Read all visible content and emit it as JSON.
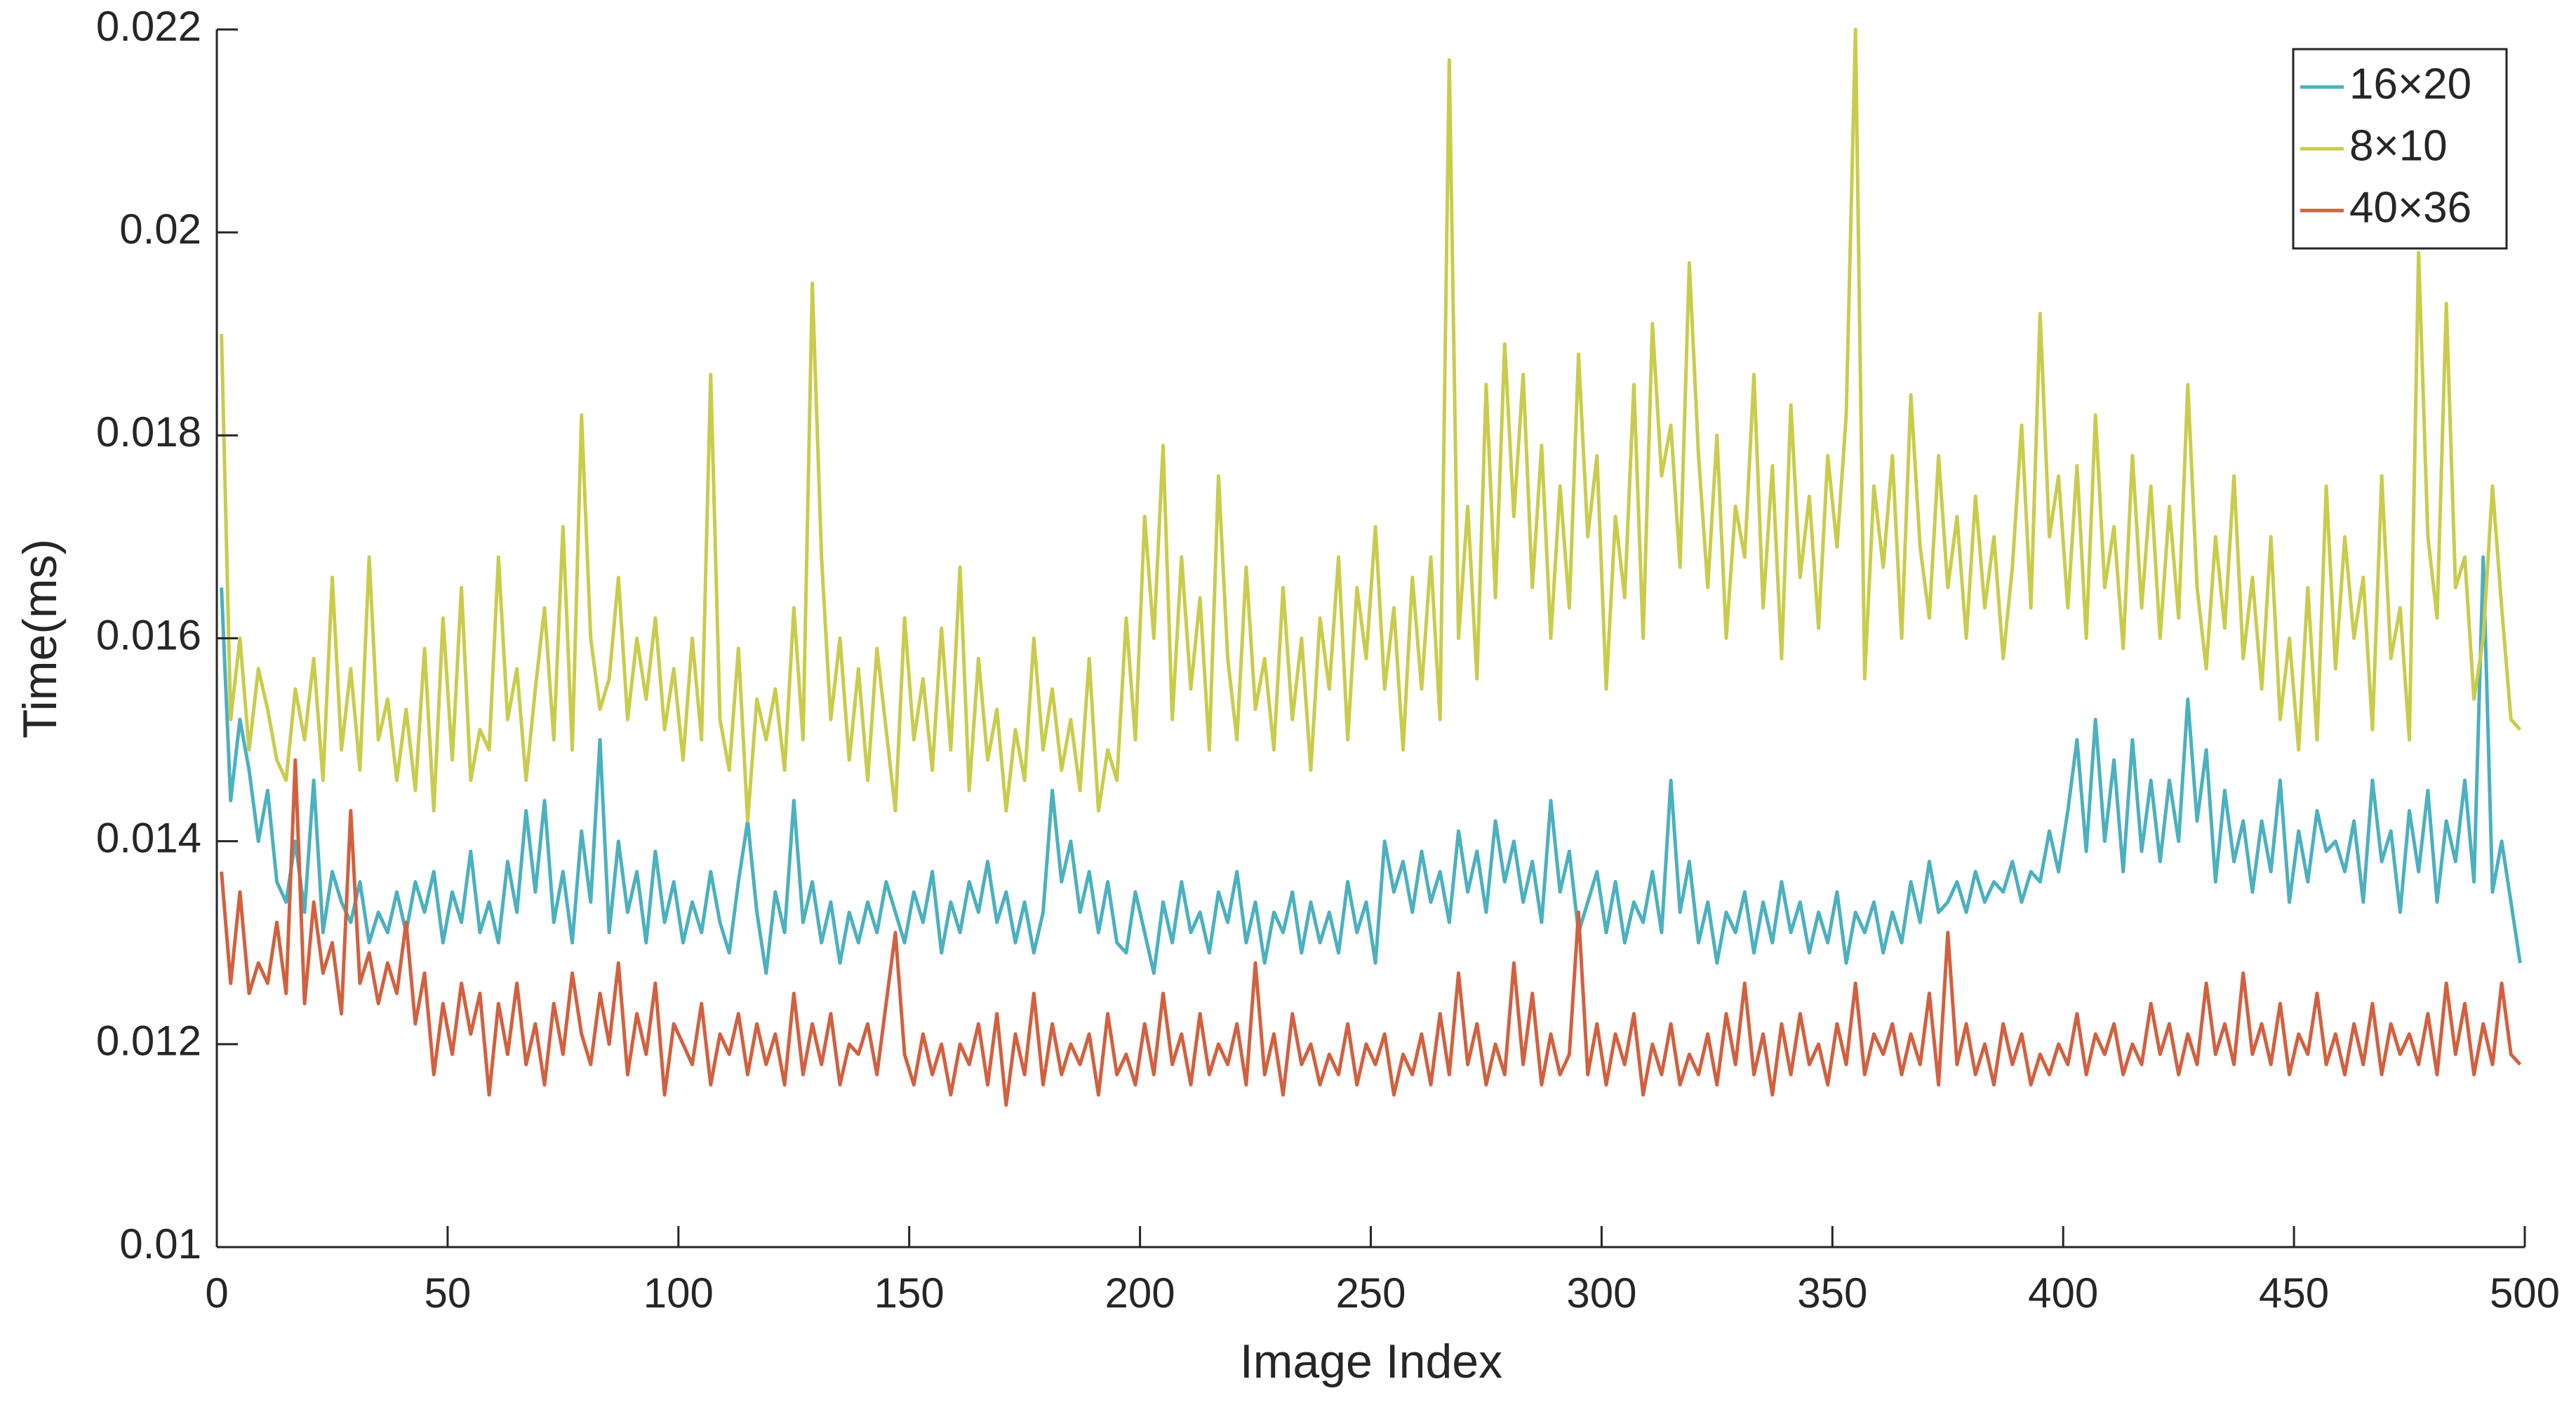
{
  "chart_data": {
    "type": "line",
    "x_label": "Image Index",
    "y_label": "Time(ms)",
    "xlim": [
      0,
      500
    ],
    "xticks": [
      0,
      50,
      100,
      150,
      200,
      250,
      300,
      350,
      400,
      450,
      500
    ],
    "ylim": [
      0.01,
      0.022
    ],
    "yticks": [
      0.01,
      0.012,
      0.014,
      0.016,
      0.018,
      0.02,
      0.022
    ],
    "legend": "northeast",
    "x": [
      1,
      3,
      5,
      7,
      9,
      11,
      13,
      15,
      17,
      19,
      21,
      23,
      25,
      27,
      29,
      31,
      33,
      35,
      37,
      39,
      41,
      43,
      45,
      47,
      49,
      51,
      53,
      55,
      57,
      59,
      61,
      63,
      65,
      67,
      69,
      71,
      73,
      75,
      77,
      79,
      81,
      83,
      85,
      87,
      89,
      91,
      93,
      95,
      97,
      99,
      101,
      103,
      105,
      107,
      109,
      111,
      113,
      115,
      117,
      119,
      121,
      123,
      125,
      127,
      129,
      131,
      133,
      135,
      137,
      139,
      141,
      143,
      145,
      147,
      149,
      151,
      153,
      155,
      157,
      159,
      161,
      163,
      165,
      167,
      169,
      171,
      173,
      175,
      177,
      179,
      181,
      183,
      185,
      187,
      189,
      191,
      193,
      195,
      197,
      199,
      201,
      203,
      205,
      207,
      209,
      211,
      213,
      215,
      217,
      219,
      221,
      223,
      225,
      227,
      229,
      231,
      233,
      235,
      237,
      239,
      241,
      243,
      245,
      247,
      249,
      251,
      253,
      255,
      257,
      259,
      261,
      263,
      265,
      267,
      269,
      271,
      273,
      275,
      277,
      279,
      281,
      283,
      285,
      287,
      289,
      291,
      293,
      295,
      297,
      299,
      301,
      303,
      305,
      307,
      309,
      311,
      313,
      315,
      317,
      319,
      321,
      323,
      325,
      327,
      329,
      331,
      333,
      335,
      337,
      339,
      341,
      343,
      345,
      347,
      349,
      351,
      353,
      355,
      357,
      359,
      361,
      363,
      365,
      367,
      369,
      371,
      373,
      375,
      377,
      379,
      381,
      383,
      385,
      387,
      389,
      391,
      393,
      395,
      397,
      399,
      401,
      403,
      405,
      407,
      409,
      411,
      413,
      415,
      417,
      419,
      421,
      423,
      425,
      427,
      429,
      431,
      433,
      435,
      437,
      439,
      441,
      443,
      445,
      447,
      449,
      451,
      453,
      455,
      457,
      459,
      461,
      463,
      465,
      467,
      469,
      471,
      473,
      475,
      477,
      479,
      481,
      483,
      485,
      487,
      489,
      491,
      493,
      495,
      497,
      499
    ],
    "series": [
      {
        "name": "16×20",
        "color": "#4bb0bf",
        "values": [
          0.0165,
          0.0144,
          0.0152,
          0.0147,
          0.014,
          0.0145,
          0.0136,
          0.0134,
          0.014,
          0.0133,
          0.0146,
          0.0131,
          0.0137,
          0.0134,
          0.0132,
          0.0136,
          0.013,
          0.0133,
          0.0131,
          0.0135,
          0.0131,
          0.0136,
          0.0133,
          0.0137,
          0.013,
          0.0135,
          0.0132,
          0.0139,
          0.0131,
          0.0134,
          0.013,
          0.0138,
          0.0133,
          0.0143,
          0.0135,
          0.0144,
          0.0132,
          0.0137,
          0.013,
          0.0141,
          0.0134,
          0.015,
          0.0131,
          0.014,
          0.0133,
          0.0137,
          0.013,
          0.0139,
          0.0132,
          0.0136,
          0.013,
          0.0134,
          0.0131,
          0.0137,
          0.0132,
          0.0129,
          0.0136,
          0.0142,
          0.0133,
          0.0127,
          0.0135,
          0.0131,
          0.0144,
          0.0132,
          0.0136,
          0.013,
          0.0134,
          0.0128,
          0.0133,
          0.013,
          0.0134,
          0.0131,
          0.0136,
          0.0133,
          0.013,
          0.0135,
          0.0132,
          0.0137,
          0.0129,
          0.0134,
          0.0131,
          0.0136,
          0.0133,
          0.0138,
          0.0132,
          0.0135,
          0.013,
          0.0134,
          0.0129,
          0.0133,
          0.0145,
          0.0136,
          0.014,
          0.0133,
          0.0137,
          0.0131,
          0.0136,
          0.013,
          0.0129,
          0.0135,
          0.0131,
          0.0127,
          0.0134,
          0.013,
          0.0136,
          0.0131,
          0.0133,
          0.0129,
          0.0135,
          0.0132,
          0.0137,
          0.013,
          0.0134,
          0.0128,
          0.0133,
          0.0131,
          0.0135,
          0.0129,
          0.0134,
          0.013,
          0.0133,
          0.0129,
          0.0136,
          0.0131,
          0.0134,
          0.0128,
          0.014,
          0.0135,
          0.0138,
          0.0133,
          0.0139,
          0.0134,
          0.0137,
          0.0132,
          0.0141,
          0.0135,
          0.0139,
          0.0133,
          0.0142,
          0.0136,
          0.014,
          0.0134,
          0.0138,
          0.0132,
          0.0144,
          0.0135,
          0.0139,
          0.0131,
          0.0134,
          0.0137,
          0.0131,
          0.0136,
          0.013,
          0.0134,
          0.0132,
          0.0137,
          0.0131,
          0.0146,
          0.0133,
          0.0138,
          0.013,
          0.0134,
          0.0128,
          0.0133,
          0.0131,
          0.0135,
          0.0129,
          0.0134,
          0.013,
          0.0136,
          0.0131,
          0.0134,
          0.0129,
          0.0133,
          0.013,
          0.0135,
          0.0128,
          0.0133,
          0.0131,
          0.0134,
          0.0129,
          0.0133,
          0.013,
          0.0136,
          0.0132,
          0.0138,
          0.0133,
          0.0134,
          0.0136,
          0.0133,
          0.0137,
          0.0134,
          0.0136,
          0.0135,
          0.0138,
          0.0134,
          0.0137,
          0.0136,
          0.0141,
          0.0137,
          0.0143,
          0.015,
          0.0139,
          0.0152,
          0.014,
          0.0148,
          0.0137,
          0.015,
          0.0139,
          0.0146,
          0.0138,
          0.0146,
          0.014,
          0.0154,
          0.0142,
          0.0149,
          0.0136,
          0.0145,
          0.0138,
          0.0142,
          0.0135,
          0.0142,
          0.0137,
          0.0146,
          0.0134,
          0.0141,
          0.0136,
          0.0143,
          0.0139,
          0.014,
          0.0137,
          0.0142,
          0.0134,
          0.0146,
          0.0138,
          0.0141,
          0.0133,
          0.0143,
          0.0137,
          0.0145,
          0.0134,
          0.0142,
          0.0138,
          0.0146,
          0.0136,
          0.0168,
          0.0135,
          0.014,
          0.0134,
          0.0128
        ]
      },
      {
        "name": "8×10",
        "color": "#c9cc4b",
        "values": [
          0.019,
          0.0152,
          0.016,
          0.0149,
          0.0157,
          0.0153,
          0.0148,
          0.0146,
          0.0155,
          0.015,
          0.0158,
          0.0146,
          0.0166,
          0.0149,
          0.0157,
          0.0147,
          0.0168,
          0.015,
          0.0154,
          0.0146,
          0.0153,
          0.0145,
          0.0159,
          0.0143,
          0.0162,
          0.0148,
          0.0165,
          0.0146,
          0.0151,
          0.0149,
          0.0168,
          0.0152,
          0.0157,
          0.0146,
          0.0155,
          0.0163,
          0.015,
          0.0171,
          0.0149,
          0.0182,
          0.016,
          0.0153,
          0.0156,
          0.0166,
          0.0152,
          0.016,
          0.0154,
          0.0162,
          0.0151,
          0.0157,
          0.0148,
          0.016,
          0.015,
          0.0186,
          0.0152,
          0.0147,
          0.0159,
          0.0142,
          0.0154,
          0.015,
          0.0155,
          0.0147,
          0.0163,
          0.015,
          0.0195,
          0.0168,
          0.0152,
          0.016,
          0.0148,
          0.0157,
          0.0146,
          0.0159,
          0.0151,
          0.0143,
          0.0162,
          0.015,
          0.0156,
          0.0147,
          0.0161,
          0.0149,
          0.0167,
          0.0145,
          0.0158,
          0.0148,
          0.0153,
          0.0143,
          0.0151,
          0.0146,
          0.016,
          0.0149,
          0.0155,
          0.0147,
          0.0152,
          0.0145,
          0.0158,
          0.0143,
          0.0149,
          0.0146,
          0.0162,
          0.015,
          0.0172,
          0.016,
          0.0179,
          0.0152,
          0.0168,
          0.0155,
          0.0164,
          0.0149,
          0.0176,
          0.0158,
          0.015,
          0.0167,
          0.0153,
          0.0158,
          0.0149,
          0.0165,
          0.0152,
          0.016,
          0.0147,
          0.0162,
          0.0155,
          0.0168,
          0.015,
          0.0165,
          0.0158,
          0.0171,
          0.0155,
          0.0163,
          0.0149,
          0.0166,
          0.0155,
          0.0168,
          0.0152,
          0.0217,
          0.016,
          0.0173,
          0.0156,
          0.0185,
          0.0164,
          0.0189,
          0.0172,
          0.0186,
          0.0165,
          0.0179,
          0.016,
          0.0175,
          0.0163,
          0.0188,
          0.017,
          0.0178,
          0.0155,
          0.0172,
          0.0164,
          0.0185,
          0.016,
          0.0191,
          0.0176,
          0.0181,
          0.0167,
          0.0197,
          0.0178,
          0.0165,
          0.018,
          0.016,
          0.0173,
          0.0168,
          0.0186,
          0.0163,
          0.0177,
          0.0158,
          0.0183,
          0.0166,
          0.0174,
          0.0161,
          0.0178,
          0.0169,
          0.0182,
          0.022,
          0.0156,
          0.0175,
          0.0167,
          0.0178,
          0.016,
          0.0184,
          0.0169,
          0.0162,
          0.0178,
          0.0165,
          0.0172,
          0.016,
          0.0174,
          0.0163,
          0.017,
          0.0158,
          0.0167,
          0.0181,
          0.0163,
          0.0192,
          0.017,
          0.0176,
          0.0163,
          0.0177,
          0.016,
          0.0182,
          0.0165,
          0.0171,
          0.0159,
          0.0178,
          0.0163,
          0.0175,
          0.016,
          0.0173,
          0.0162,
          0.0185,
          0.0165,
          0.0157,
          0.017,
          0.0161,
          0.0176,
          0.0158,
          0.0166,
          0.0155,
          0.017,
          0.0152,
          0.016,
          0.0149,
          0.0165,
          0.015,
          0.0175,
          0.0157,
          0.017,
          0.016,
          0.0166,
          0.0151,
          0.0176,
          0.0158,
          0.0163,
          0.015,
          0.0198,
          0.017,
          0.0162,
          0.0193,
          0.0165,
          0.0168,
          0.0154,
          0.016,
          0.0175,
          0.0163,
          0.0152,
          0.0151
        ]
      },
      {
        "name": "40×36",
        "color": "#d2603f",
        "values": [
          0.0137,
          0.0126,
          0.0135,
          0.0125,
          0.0128,
          0.0126,
          0.0132,
          0.0125,
          0.0148,
          0.0124,
          0.0134,
          0.0127,
          0.013,
          0.0123,
          0.0143,
          0.0126,
          0.0129,
          0.0124,
          0.0128,
          0.0125,
          0.0132,
          0.0122,
          0.0127,
          0.0117,
          0.0124,
          0.0119,
          0.0126,
          0.0121,
          0.0125,
          0.0115,
          0.0124,
          0.0119,
          0.0126,
          0.0118,
          0.0122,
          0.0116,
          0.0124,
          0.0119,
          0.0127,
          0.0121,
          0.0118,
          0.0125,
          0.012,
          0.0128,
          0.0117,
          0.0123,
          0.0119,
          0.0126,
          0.0115,
          0.0122,
          0.012,
          0.0118,
          0.0124,
          0.0116,
          0.0121,
          0.0119,
          0.0123,
          0.0117,
          0.0122,
          0.0118,
          0.0121,
          0.0116,
          0.0125,
          0.0117,
          0.0122,
          0.0118,
          0.0123,
          0.0116,
          0.012,
          0.0119,
          0.0122,
          0.0117,
          0.0124,
          0.0131,
          0.0119,
          0.0116,
          0.0121,
          0.0117,
          0.012,
          0.0115,
          0.012,
          0.0118,
          0.0122,
          0.0116,
          0.0123,
          0.0114,
          0.0121,
          0.0117,
          0.0125,
          0.0116,
          0.0122,
          0.0117,
          0.012,
          0.0118,
          0.0121,
          0.0115,
          0.0123,
          0.0117,
          0.0119,
          0.0116,
          0.0122,
          0.0117,
          0.0125,
          0.0118,
          0.0121,
          0.0116,
          0.0123,
          0.0117,
          0.012,
          0.0118,
          0.0122,
          0.0116,
          0.0128,
          0.0117,
          0.0121,
          0.0115,
          0.0123,
          0.0118,
          0.012,
          0.0116,
          0.0119,
          0.0117,
          0.0122,
          0.0116,
          0.012,
          0.0118,
          0.0121,
          0.0115,
          0.0119,
          0.0117,
          0.0121,
          0.0116,
          0.0123,
          0.0117,
          0.0127,
          0.0118,
          0.0122,
          0.0116,
          0.012,
          0.0117,
          0.0128,
          0.0118,
          0.0125,
          0.0116,
          0.0121,
          0.0117,
          0.0119,
          0.0133,
          0.0117,
          0.0122,
          0.0116,
          0.0121,
          0.0118,
          0.0123,
          0.0115,
          0.012,
          0.0117,
          0.0122,
          0.0116,
          0.0119,
          0.0117,
          0.0121,
          0.0116,
          0.0123,
          0.0118,
          0.0126,
          0.0117,
          0.0121,
          0.0115,
          0.0122,
          0.0117,
          0.0123,
          0.0118,
          0.012,
          0.0116,
          0.0122,
          0.0118,
          0.0126,
          0.0117,
          0.0121,
          0.0119,
          0.0122,
          0.0117,
          0.0121,
          0.0118,
          0.0125,
          0.0116,
          0.0131,
          0.0118,
          0.0122,
          0.0117,
          0.012,
          0.0116,
          0.0122,
          0.0118,
          0.0121,
          0.0116,
          0.0119,
          0.0117,
          0.012,
          0.0118,
          0.0123,
          0.0117,
          0.0121,
          0.0119,
          0.0122,
          0.0117,
          0.012,
          0.0118,
          0.0124,
          0.0119,
          0.0122,
          0.0117,
          0.0121,
          0.0118,
          0.0126,
          0.0119,
          0.0122,
          0.0118,
          0.0127,
          0.0119,
          0.0122,
          0.0118,
          0.0124,
          0.0117,
          0.0121,
          0.0119,
          0.0125,
          0.0118,
          0.0121,
          0.0117,
          0.0122,
          0.0118,
          0.0124,
          0.0117,
          0.0122,
          0.0119,
          0.0121,
          0.0118,
          0.0123,
          0.0117,
          0.0126,
          0.0119,
          0.0124,
          0.0117,
          0.0122,
          0.0118,
          0.0126,
          0.0119,
          0.0118
        ]
      }
    ]
  }
}
